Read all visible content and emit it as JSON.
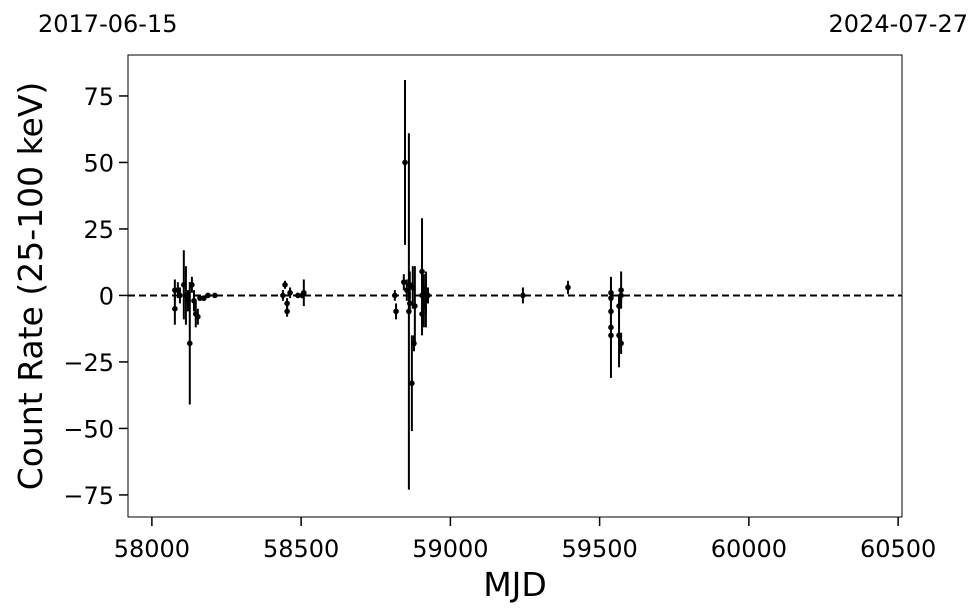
{
  "chart_data": {
    "type": "errorbar",
    "xlabel": "MJD",
    "ylabel": "Count Rate (25-100 keV)",
    "annotations": {
      "left": "2017-06-15",
      "right": "2024-07-27"
    },
    "hline": 0,
    "xlim": [
      57920,
      60513
    ],
    "ylim": [
      -83.3,
      90.4
    ],
    "xticks": [
      58000,
      58500,
      59000,
      59500,
      60000,
      60500
    ],
    "yticks": [
      {
        "value": -75,
        "label": "−75"
      },
      {
        "value": -50,
        "label": "−50"
      },
      {
        "value": -25,
        "label": "−25"
      },
      0,
      25,
      50,
      75
    ],
    "color": "#000000",
    "x": [
      58077,
      58077,
      58087,
      58094,
      58107,
      58114,
      58121,
      58127,
      58134,
      58141,
      58147,
      58154,
      58161,
      58174,
      58188,
      58211,
      58439,
      58446,
      58453,
      58453,
      58463,
      58489,
      58503,
      58509,
      58814,
      58818,
      58844,
      58848,
      58854,
      58861,
      58864,
      58864,
      58871,
      58874,
      58878,
      58881,
      58905,
      58905,
      58905,
      58911,
      58911,
      58918,
      58918,
      58925,
      59243,
      59394,
      59538,
      59538,
      59538,
      59538,
      59538,
      59565,
      59565,
      59572,
      59572,
      59572
    ],
    "values": [
      -5,
      2,
      2,
      0,
      4,
      0,
      -2,
      -18,
      4,
      -2,
      -7,
      -8,
      -1,
      -1,
      0,
      0,
      0,
      4,
      -6,
      -3,
      1,
      0,
      0,
      1,
      0,
      -6,
      5,
      50,
      2,
      -6,
      4,
      -3,
      -33,
      3,
      -18,
      -4,
      9,
      -7,
      0,
      -4,
      2,
      -2,
      1,
      0,
      0,
      3,
      1,
      -1,
      -6,
      -12,
      -15,
      -15,
      -4,
      -18,
      2,
      0
    ],
    "errors": [
      6,
      4,
      3,
      3,
      13,
      11,
      4,
      23,
      3,
      4,
      5,
      3,
      1,
      1,
      1,
      0.5,
      2,
      1.5,
      2,
      2,
      2,
      1,
      1,
      5,
      2,
      3,
      3,
      31,
      4,
      67,
      5,
      4,
      18,
      8,
      3,
      15,
      20,
      8,
      10,
      8,
      6,
      10,
      8,
      3,
      3,
      2.5,
      6,
      5,
      5,
      4,
      16,
      12,
      4,
      4,
      7,
      3
    ]
  }
}
